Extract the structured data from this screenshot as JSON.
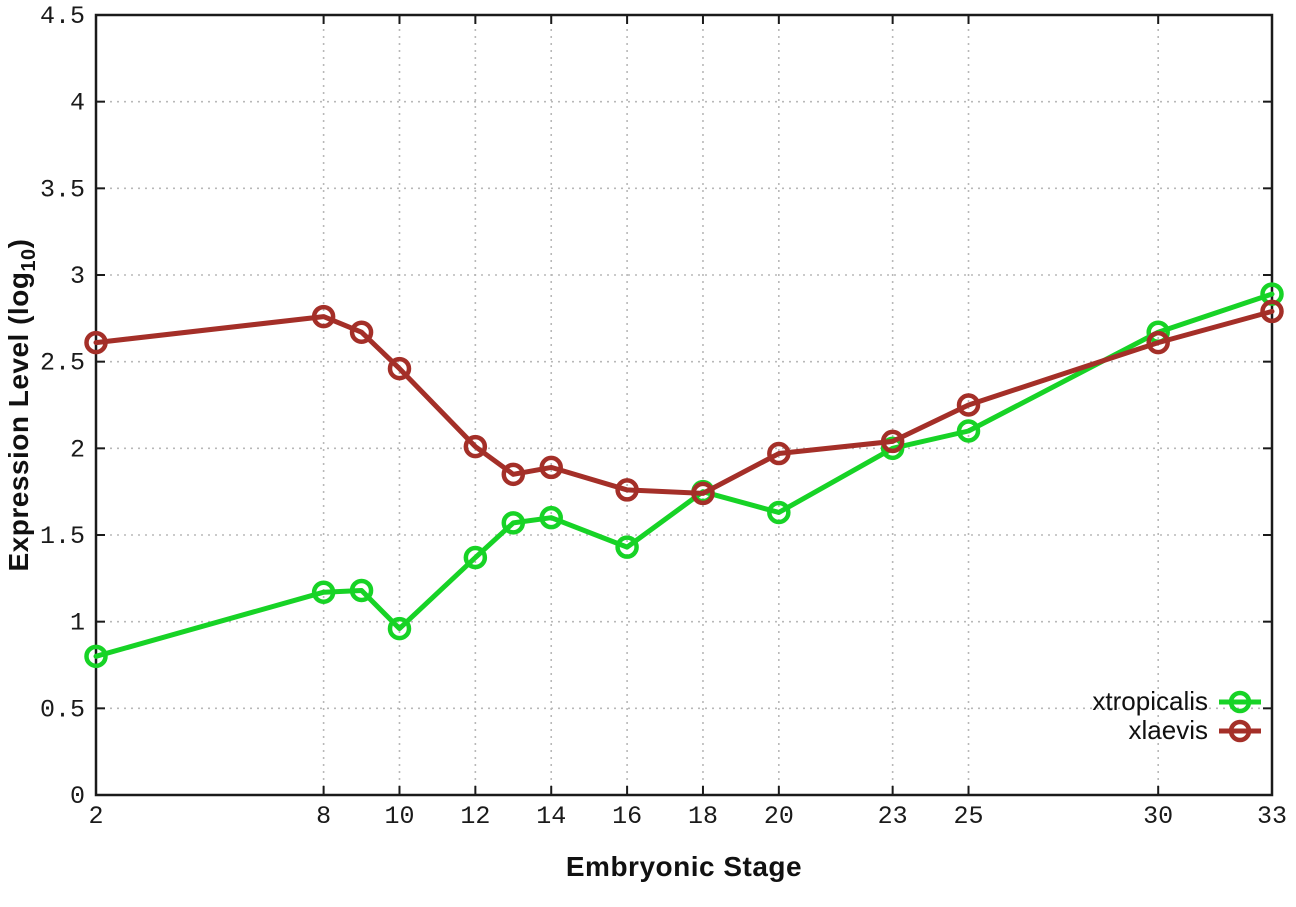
{
  "chart_data": {
    "type": "line",
    "title": "",
    "xlabel": "Embryonic Stage",
    "ylabel": "Expression Level (log10)",
    "ylabel_parts": {
      "main": "Expression Level (log",
      "sub": "10",
      "suffix": ")"
    },
    "xlim": [
      2,
      33
    ],
    "ylim": [
      0,
      4.5
    ],
    "grid": true,
    "legend_position": "bottom-right-inside",
    "x": [
      2,
      8,
      9,
      10,
      12,
      13,
      14,
      16,
      18,
      20,
      23,
      25,
      30,
      33
    ],
    "xtick_values": [
      2,
      8,
      10,
      12,
      14,
      16,
      18,
      20,
      23,
      25,
      30,
      33
    ],
    "xtick_labels": [
      "2",
      "8",
      "10",
      "12",
      "14",
      "16",
      "18",
      "20",
      "23",
      "25",
      "30",
      "33"
    ],
    "ytick_values": [
      0,
      0.5,
      1,
      1.5,
      2,
      2.5,
      3,
      3.5,
      4,
      4.5
    ],
    "ytick_labels": [
      "0",
      "0.5",
      "1",
      "1.5",
      "2",
      "2.5",
      "3",
      "3.5",
      "4",
      "4.5"
    ],
    "series": [
      {
        "name": "xtropicalis",
        "color": "#17d326",
        "marker": "open-circle",
        "values": [
          0.8,
          1.17,
          1.18,
          0.96,
          1.37,
          1.57,
          1.6,
          1.43,
          1.75,
          1.63,
          2.0,
          2.1,
          2.67,
          2.89
        ]
      },
      {
        "name": "xlaevis",
        "color": "#a42f28",
        "marker": "open-circle",
        "values": [
          2.61,
          2.76,
          2.67,
          2.46,
          2.01,
          1.85,
          1.89,
          1.76,
          1.74,
          1.97,
          2.04,
          2.25,
          2.61,
          2.79
        ]
      }
    ],
    "colors": {
      "grid": "#b8b8b8",
      "axis": "#1a1a1a",
      "tick_text": "#1a1a1a",
      "background": "#ffffff"
    }
  }
}
